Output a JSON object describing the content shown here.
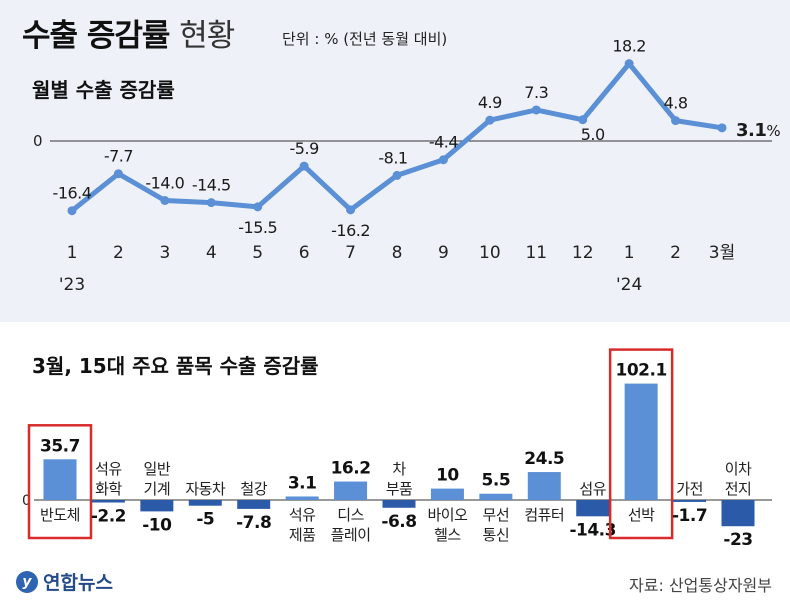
{
  "header": {
    "title_bold": "수출 증감률",
    "title_light": "현황",
    "unit_note": "단위 : % (전년 동월 대비)"
  },
  "line_section": {
    "subtitle": "월별 수출 증감률"
  },
  "bar_section": {
    "subtitle": "3월, 15대 주요 품목 수출 증감률"
  },
  "footer": {
    "logo": "연합뉴스",
    "source": "자료: 산업통상자원부"
  },
  "colors": {
    "line": "#5b8fd6",
    "bar_positive": "#5b8fd6",
    "bar_negative": "#2a5aa8",
    "highlight_box": "#d92b2b",
    "panel_bg": "#eef2f8"
  },
  "chart_data": [
    {
      "type": "line",
      "title": "월별 수출 증감률",
      "x": [
        "1",
        "2",
        "3",
        "4",
        "5",
        "6",
        "7",
        "8",
        "9",
        "10",
        "11",
        "12",
        "1",
        "2",
        "3월"
      ],
      "year_labels": [
        {
          "index": 0,
          "label": "'23"
        },
        {
          "index": 12,
          "label": "'24"
        }
      ],
      "values": [
        -16.4,
        -7.7,
        -14.0,
        -14.5,
        -15.5,
        -5.9,
        -16.2,
        -8.1,
        -4.4,
        4.9,
        7.3,
        5.0,
        18.2,
        4.8,
        3.1
      ],
      "value_labels": [
        "-16.4",
        "-7.7",
        "-14.0",
        "-14.5",
        "-15.5",
        "-5.9",
        "-16.2",
        "-8.1",
        "-4.4",
        "4.9",
        "7.3",
        "5.0",
        "18.2",
        "4.8",
        "3.1"
      ],
      "last_value_suffix": "%",
      "zero_label": "0",
      "ylim": [
        -20,
        20
      ]
    },
    {
      "type": "bar",
      "title": "3월, 15대 주요 품목 수출 증감률",
      "categories": [
        [
          "반도체"
        ],
        [
          "석유",
          "화학"
        ],
        [
          "일반",
          "기계"
        ],
        [
          "자동차"
        ],
        [
          "철강"
        ],
        [
          "석유",
          "제품"
        ],
        [
          "디스",
          "플레이"
        ],
        [
          "차",
          "부품"
        ],
        [
          "바이오",
          "헬스"
        ],
        [
          "무선",
          "통신"
        ],
        [
          "컴퓨터"
        ],
        [
          "섬유"
        ],
        [
          "선박"
        ],
        [
          "가전"
        ],
        [
          "이차",
          "전지"
        ]
      ],
      "values": [
        35.7,
        -2.2,
        -10,
        -5,
        -7.8,
        3.1,
        16.2,
        -6.8,
        10,
        5.5,
        24.5,
        -14.3,
        102.1,
        -1.7,
        -23
      ],
      "value_labels": [
        "35.7",
        "-2.2",
        "-10",
        "-5",
        "-7.8",
        "3.1",
        "16.2",
        "-6.8",
        "10",
        "5.5",
        "24.5",
        "-14.3",
        "102.1",
        "-1.7",
        "-23"
      ],
      "highlighted": [
        "반도체",
        "선박"
      ],
      "zero_label": "0"
    }
  ]
}
